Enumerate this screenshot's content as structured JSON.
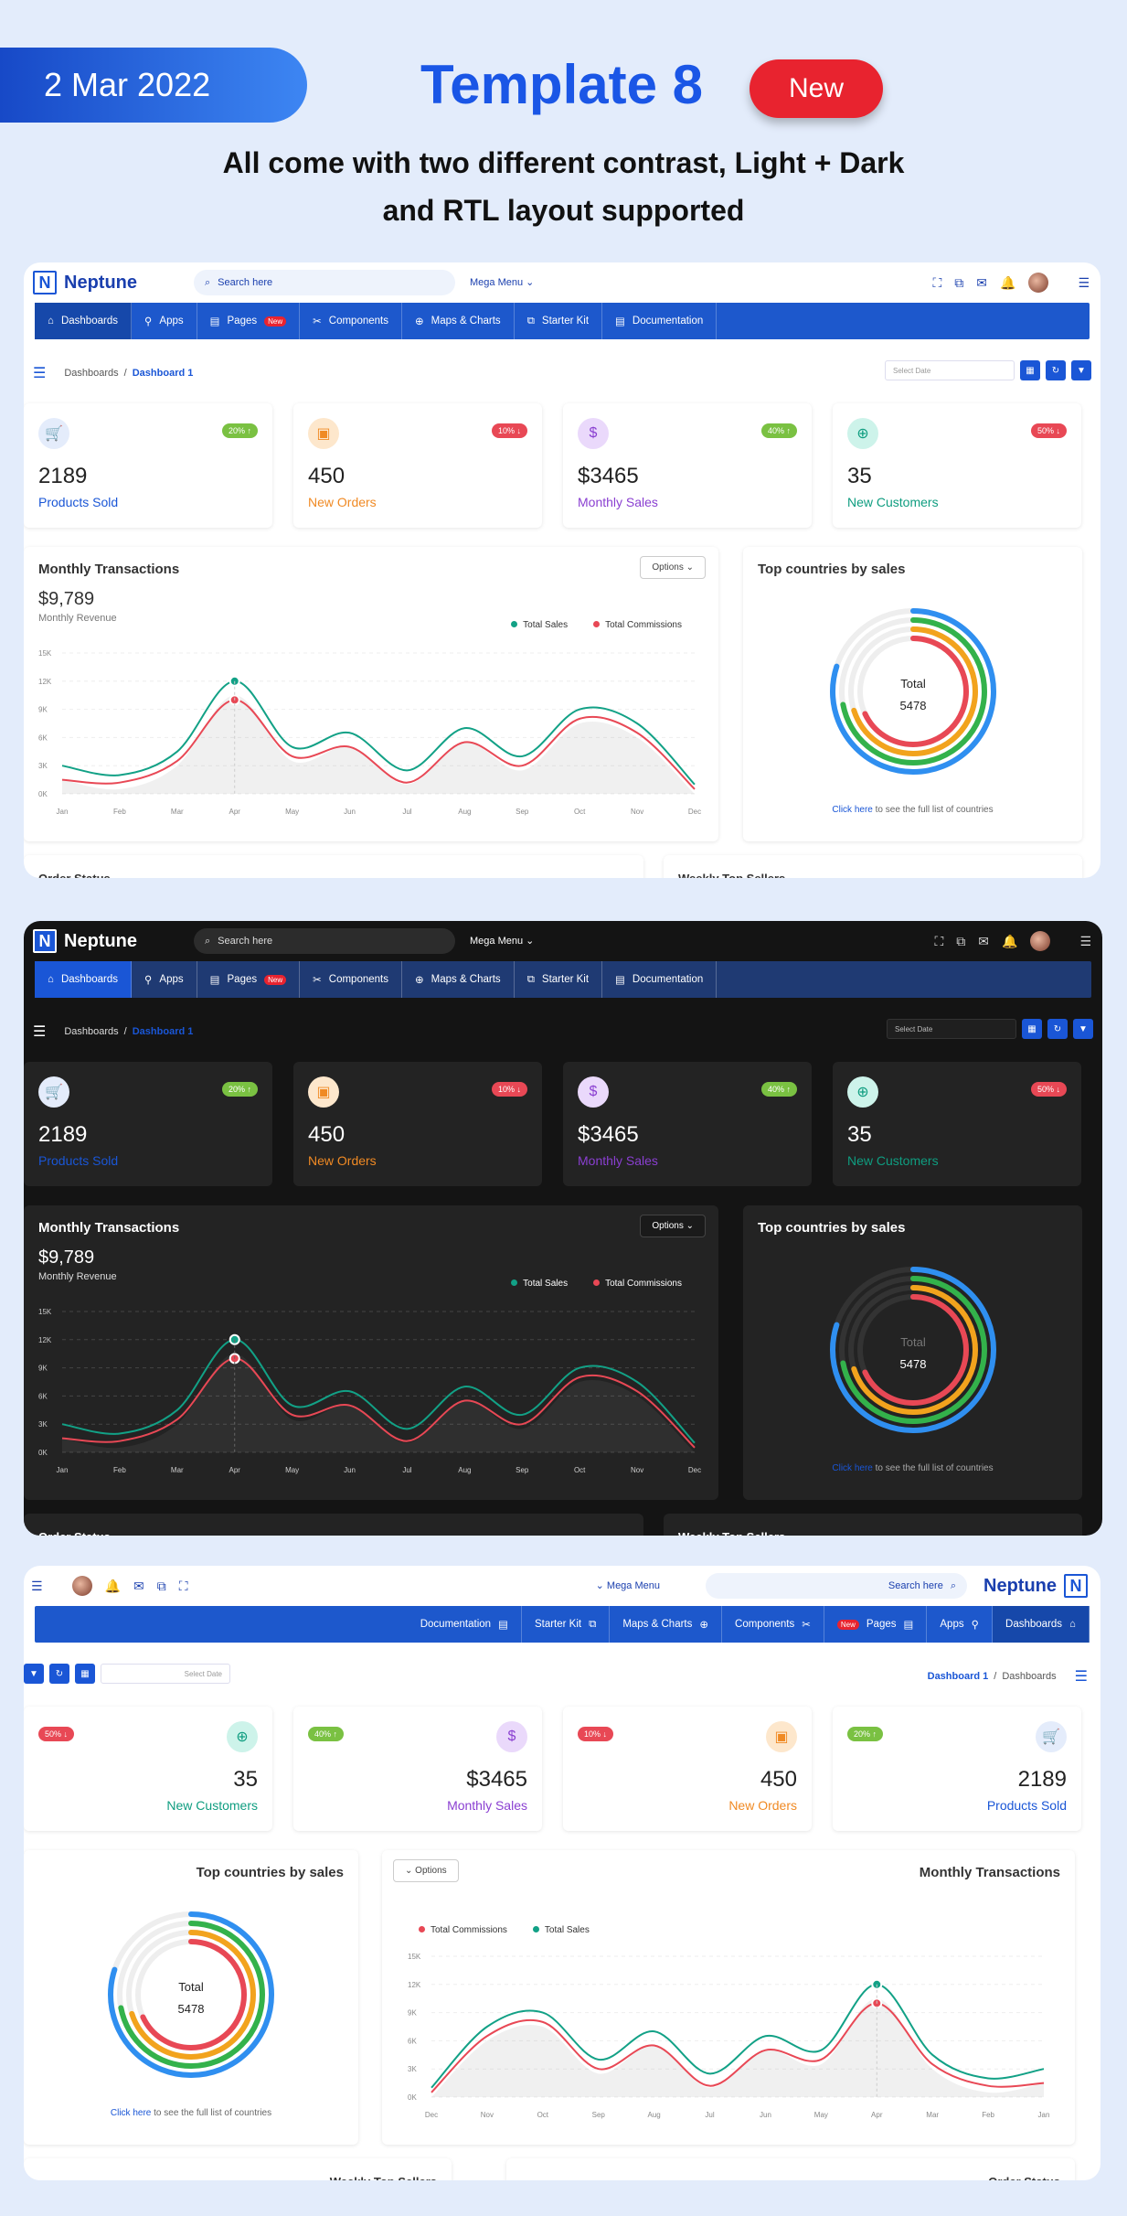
{
  "promo": {
    "date": "2 Mar 2022",
    "title": "Template 8",
    "badge": "New",
    "subtitle_line1": "All come with two different contrast, Light + Dark",
    "subtitle_line2": "and RTL layout supported"
  },
  "app": {
    "logo_letter": "N",
    "name": "Neptune",
    "search_placeholder": "Search here",
    "mega_menu": "Mega Menu",
    "nav": [
      {
        "label": "Dashboards",
        "icon": "home-icon"
      },
      {
        "label": "Apps",
        "icon": "bulb-icon"
      },
      {
        "label": "Pages",
        "icon": "page-icon",
        "tag": "New"
      },
      {
        "label": "Components",
        "icon": "tools-icon"
      },
      {
        "label": "Maps & Charts",
        "icon": "globe-icon"
      },
      {
        "label": "Starter Kit",
        "icon": "copy-icon"
      },
      {
        "label": "Documentation",
        "icon": "doc-icon"
      }
    ],
    "breadcrumb": {
      "root": "Dashboards",
      "sep": "/",
      "current": "Dashboard 1"
    },
    "date_placeholder": "Select Date",
    "stats": [
      {
        "value": "2189",
        "label": "Products Sold",
        "badge": "20% ↑",
        "badge_color": "#7ac142",
        "color": "#1a56d6",
        "icon_bg": "#e4ecfb",
        "icon": "cart-icon",
        "glyph": "🛒"
      },
      {
        "value": "450",
        "label": "New Orders",
        "badge": "10% ↓",
        "badge_color": "#e84855",
        "color": "#f08a24",
        "icon_bg": "#fde7cc",
        "icon": "box-icon",
        "glyph": "▣"
      },
      {
        "value": "$3465",
        "label": "Monthly Sales",
        "badge": "40% ↑",
        "badge_color": "#7ac142",
        "color": "#8a3fd1",
        "icon_bg": "#ead9fb",
        "icon": "dollar-hand-icon",
        "glyph": "$"
      },
      {
        "value": "35",
        "label": "New Customers",
        "badge": "50% ↓",
        "badge_color": "#e84855",
        "color": "#0f9d80",
        "icon_bg": "#cdf3ea",
        "icon": "add-user-icon",
        "glyph": "⊕"
      }
    ],
    "transactions": {
      "title": "Monthly Transactions",
      "options": "Options",
      "revenue": "$9,789",
      "revenue_label": "Monthly Revenue",
      "legend_sales": "Total Sales",
      "legend_commissions": "Total Commissions"
    },
    "countries": {
      "title": "Top countries by sales",
      "total_label": "Total",
      "total_value": "5478",
      "link": "Click here",
      "note": "to see the full list of countries"
    },
    "order_status": "Order Status",
    "weekly_sellers": "Weekly Top Sellers"
  },
  "chart_data": {
    "type": "line",
    "categories": [
      "Jan",
      "Feb",
      "Mar",
      "Apr",
      "May",
      "Jun",
      "Jul",
      "Aug",
      "Sep",
      "Oct",
      "Nov",
      "Dec"
    ],
    "y_ticks": [
      "0K",
      "3K",
      "6K",
      "9K",
      "12K",
      "15K"
    ],
    "ylim": [
      0,
      15
    ],
    "series": [
      {
        "name": "Total Sales",
        "color": "#12a186",
        "values": [
          3,
          2,
          4.5,
          12,
          5,
          6.5,
          2.5,
          7,
          4,
          9,
          7.5,
          1
        ]
      },
      {
        "name": "Total Commissions",
        "color": "#e84855",
        "values": [
          1.5,
          1.2,
          3.5,
          10,
          4,
          5,
          1.2,
          5.5,
          3,
          8,
          6.5,
          0.5
        ]
      }
    ],
    "highlight_index": 3
  }
}
